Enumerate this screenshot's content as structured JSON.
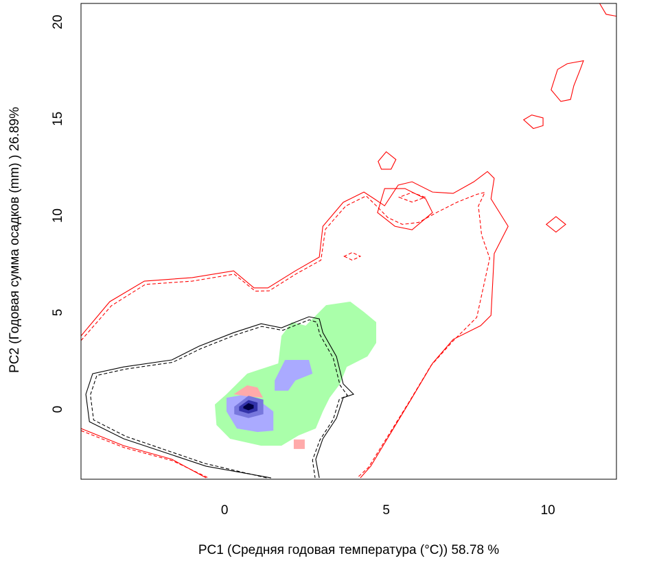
{
  "chart_data": {
    "type": "contour",
    "xlabel": "PC1 (Средняя годовая температура (°C)) 58.78 %",
    "ylabel": "PC2 (Годовая сумма осадков  (mm) ) 26.89%",
    "xlim": [
      -4.44,
      12.12
    ],
    "ylim": [
      -3.61,
      20.96
    ],
    "xticks": [
      0,
      5,
      10
    ],
    "yticks": [
      0,
      5,
      10,
      15,
      20
    ],
    "areas": [
      {
        "color": "#aaffaa",
        "x": [
          -0.3,
          0.06,
          0.7,
          1.66,
          1.76,
          2.08,
          2.51,
          3.14,
          3.89,
          4.31,
          4.69,
          4.69,
          4.42,
          3.78,
          3.57,
          3.25,
          3.04,
          2.82,
          2.29,
          1.76,
          1.13,
          0.17,
          -0.25
        ],
        "y": [
          0.25,
          0.78,
          1.84,
          2.37,
          3.79,
          4.5,
          4.32,
          5.38,
          5.56,
          5.03,
          4.5,
          3.43,
          2.73,
          2.19,
          1.31,
          0.6,
          -0.11,
          -0.99,
          -1.35,
          -1.88,
          -1.88,
          -1.52,
          -0.81
        ]
      },
      {
        "color": "#aaaaff",
        "x": [
          1.55,
          1.87,
          2.61,
          2.72,
          2.19,
          1.97,
          1.55
        ],
        "y": [
          1.49,
          2.55,
          2.55,
          1.84,
          1.49,
          0.96,
          0.96
        ]
      },
      {
        "color": "#aaaaff",
        "x": [
          0.06,
          0.7,
          1.23,
          1.51,
          1.51,
          1.02,
          0.38,
          0.06
        ],
        "y": [
          0.6,
          0.78,
          0.25,
          -0.11,
          -1.1,
          -1.17,
          -0.99,
          -0.11
        ]
      },
      {
        "color": "#ffaaaa",
        "x": [
          0.28,
          0.7,
          1.02,
          1.19,
          0.7
        ],
        "y": [
          0.78,
          1.24,
          1.13,
          0.6,
          0.67
        ]
      },
      {
        "color": "#ffaaaa",
        "x": [
          2.14,
          2.48,
          2.48,
          2.14
        ],
        "y": [
          -1.56,
          -1.56,
          -2.05,
          -2.05
        ]
      },
      {
        "color": "#7777dd",
        "x": [
          0.3,
          0.74,
          1.2,
          1.2,
          0.74,
          0.3
        ],
        "y": [
          0.14,
          0.7,
          0.5,
          -0.25,
          -0.45,
          -0.25
        ]
      },
      {
        "color": "#3333aa",
        "x": [
          0.45,
          0.74,
          1.02,
          1.02,
          0.74,
          0.45
        ],
        "y": [
          0.14,
          0.48,
          0.35,
          -0.08,
          -0.22,
          -0.08
        ]
      },
      {
        "color": "#000044",
        "x": [
          0.58,
          0.74,
          0.9,
          0.9,
          0.74,
          0.58
        ],
        "y": [
          0.14,
          0.32,
          0.22,
          0.05,
          -0.05,
          0.05
        ]
      }
    ],
    "lines": [
      {
        "color": "#000000",
        "dash": false,
        "x": [
          1.44,
          -0.57,
          -3.12,
          -4.18,
          -4.29,
          -4.08,
          -3.12,
          -1.63,
          -0.79,
          0.28,
          1.13,
          1.76,
          2.19,
          2.61,
          2.93,
          3.04,
          3.46,
          3.67,
          3.99,
          3.67,
          3.46,
          3.04,
          2.82,
          2.93
        ],
        "y": [
          -3.54,
          -2.94,
          -1.52,
          -0.64,
          0.78,
          1.84,
          2.19,
          2.55,
          3.26,
          3.96,
          4.42,
          4.21,
          4.5,
          4.78,
          4.67,
          3.96,
          2.73,
          1.31,
          0.78,
          0.6,
          -0.46,
          -1.52,
          -2.58,
          -3.54
        ]
      },
      {
        "color": "#000000",
        "dash": true,
        "x": [
          1.3,
          -0.6,
          -3.05,
          -4.05,
          -4.15,
          -3.95,
          -3.05,
          -1.6,
          -0.75,
          0.3,
          1.15,
          1.8,
          2.22,
          2.62,
          2.85,
          2.95,
          3.36,
          3.57,
          3.8,
          3.55,
          3.36,
          2.95,
          2.72,
          2.8
        ],
        "y": [
          -3.54,
          -2.8,
          -1.4,
          -0.55,
          0.75,
          1.75,
          2.08,
          2.43,
          3.12,
          3.82,
          4.28,
          4.08,
          4.36,
          4.62,
          4.5,
          3.85,
          2.65,
          1.25,
          0.72,
          0.52,
          -0.52,
          -1.58,
          -2.62,
          -3.54
        ]
      },
      {
        "color": "#ff0000",
        "dash": false,
        "x": [
          -4.44,
          -3.55,
          -2.48,
          -1.0,
          0.28,
          0.91,
          1.34,
          2.19,
          2.93,
          3.04,
          3.67,
          4.31,
          4.63,
          4.95,
          5.37,
          5.8,
          6.43,
          7.07,
          7.71,
          8.13,
          8.34,
          8.24,
          8.77,
          8.34,
          8.24,
          7.92,
          7.07,
          6.43,
          5.8,
          5.16,
          4.52,
          4.2
        ],
        "y": [
          3.79,
          5.56,
          6.62,
          6.8,
          7.15,
          6.27,
          6.27,
          7.15,
          7.86,
          9.45,
          10.69,
          11.22,
          10.87,
          10.51,
          11.58,
          11.75,
          11.22,
          11.15,
          11.75,
          12.28,
          11.93,
          10.87,
          9.45,
          8.04,
          4.85,
          4.32,
          3.61,
          2.37,
          0.6,
          -1.17,
          -2.94,
          -3.54
        ]
      },
      {
        "color": "#ff0000",
        "dash": true,
        "x": [
          -4.44,
          -3.5,
          -2.45,
          -1.0,
          0.3,
          0.95,
          1.38,
          2.22,
          2.98,
          3.12,
          3.75,
          4.38,
          4.7,
          5.05,
          5.5,
          6.0,
          6.6,
          7.2,
          7.8,
          8.05,
          7.85,
          7.95,
          8.2,
          7.8,
          7.05,
          6.38,
          5.75,
          5.1,
          4.45,
          4.1
        ],
        "y": [
          3.55,
          5.35,
          6.45,
          6.62,
          6.98,
          6.1,
          6.12,
          7.0,
          7.7,
          9.3,
          10.5,
          11.02,
          10.5,
          9.9,
          9.55,
          9.65,
          10.2,
          10.7,
          11.1,
          11.2,
          10.5,
          9.0,
          7.8,
          4.75,
          3.5,
          2.25,
          0.5,
          -1.25,
          -3.0,
          -3.54
        ]
      },
      {
        "color": "#ff0000",
        "dash": false,
        "x": [
          -4.44,
          -3.12,
          -1.63,
          -0.57
        ],
        "y": [
          -0.99,
          -1.88,
          -2.58,
          -3.54
        ]
      },
      {
        "color": "#ff0000",
        "dash": true,
        "x": [
          -4.44,
          -3.1,
          -1.6,
          -0.5
        ],
        "y": [
          -1.1,
          -1.98,
          -2.66,
          -3.54
        ]
      },
      {
        "color": "#ff0000",
        "dash": false,
        "closed": true,
        "x": [
          4.73,
          5.27,
          5.8,
          6.43,
          6.22,
          5.58,
          4.95
        ],
        "y": [
          10.16,
          9.45,
          9.27,
          10.16,
          10.87,
          11.4,
          11.4
        ]
      },
      {
        "color": "#ff0000",
        "dash": true,
        "closed": true,
        "x": [
          5.4,
          5.8,
          6.2,
          5.8
        ],
        "y": [
          10.95,
          10.7,
          10.95,
          11.2
        ]
      },
      {
        "color": "#ff0000",
        "dash": true,
        "closed": true,
        "x": [
          3.7,
          3.95,
          4.2,
          3.95
        ],
        "y": [
          7.9,
          7.7,
          7.9,
          8.1
        ]
      },
      {
        "color": "#ff0000",
        "dash": false,
        "closed": true,
        "x": [
          4.75,
          5.0,
          5.3,
          5.15,
          4.85
        ],
        "y": [
          12.8,
          13.3,
          12.9,
          12.4,
          12.4
        ]
      },
      {
        "color": "#ff0000",
        "dash": false,
        "closed": true,
        "x": [
          9.25,
          9.5,
          9.85,
          9.85,
          9.55
        ],
        "y": [
          14.95,
          15.2,
          15.05,
          14.65,
          14.5
        ]
      },
      {
        "color": "#ff0000",
        "dash": false,
        "closed": true,
        "x": [
          9.95,
          10.25,
          10.55,
          10.25
        ],
        "y": [
          9.55,
          9.95,
          9.55,
          9.15
        ]
      },
      {
        "color": "#ff0000",
        "dash": false,
        "closed": true,
        "x": [
          11.1,
          11.0,
          10.8,
          10.7,
          10.4,
          10.1,
          10.3,
          10.6
        ],
        "y": [
          18.0,
          17.55,
          16.7,
          16.0,
          15.9,
          16.5,
          17.55,
          17.85
        ]
      },
      {
        "color": "#ff0000",
        "dash": false,
        "x": [
          11.6,
          11.8,
          12.12
        ],
        "y": [
          20.96,
          20.4,
          20.3
        ]
      }
    ]
  }
}
